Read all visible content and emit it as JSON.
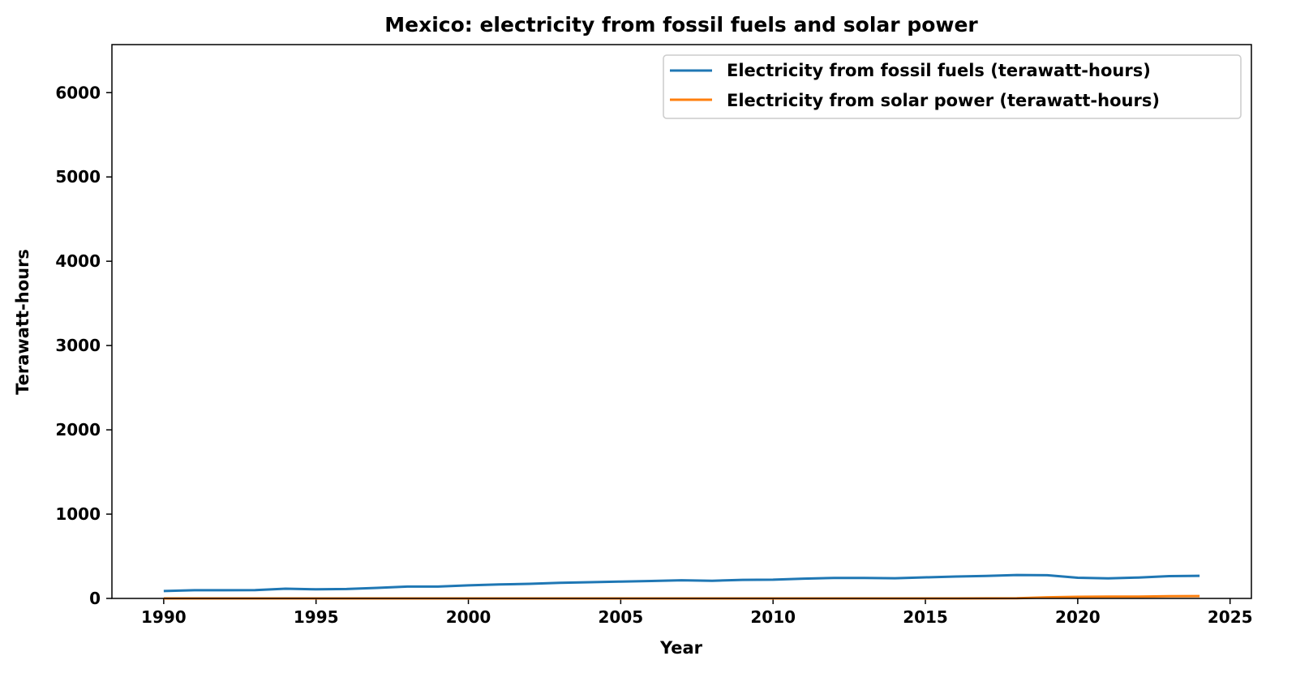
{
  "chart_data": {
    "type": "line",
    "title": "Mexico: electricity from fossil fuels and solar power",
    "xlabel": "Year",
    "ylabel": "Terawatt-hours",
    "xlim": [
      1988.3,
      2025.7
    ],
    "ylim": [
      0,
      6570
    ],
    "xticks": [
      1990,
      1995,
      2000,
      2005,
      2010,
      2015,
      2020,
      2025
    ],
    "yticks": [
      0,
      1000,
      2000,
      3000,
      4000,
      5000,
      6000
    ],
    "grid": false,
    "legend_position": "top-right",
    "x": [
      1990,
      1991,
      1992,
      1993,
      1994,
      1995,
      1996,
      1997,
      1998,
      1999,
      2000,
      2001,
      2002,
      2003,
      2004,
      2005,
      2006,
      2007,
      2008,
      2009,
      2010,
      2011,
      2012,
      2013,
      2014,
      2015,
      2016,
      2017,
      2018,
      2019,
      2020,
      2021,
      2022,
      2023,
      2024
    ],
    "series": [
      {
        "name": "Electricity from fossil fuels (terawatt-hours)",
        "color": "#1f77b4",
        "values": [
          88,
          97,
          97,
          98,
          115,
          108,
          112,
          125,
          140,
          140,
          155,
          165,
          173,
          185,
          192,
          200,
          207,
          215,
          210,
          220,
          222,
          235,
          243,
          243,
          240,
          250,
          260,
          267,
          278,
          275,
          245,
          238,
          248,
          265,
          268
        ]
      },
      {
        "name": "Electricity from solar power (terawatt-hours)",
        "color": "#ff7f0e",
        "values": [
          0,
          0,
          0,
          0,
          0,
          0,
          0,
          0,
          0,
          0,
          0,
          0,
          0,
          0,
          0,
          0,
          0,
          0,
          0,
          0,
          0,
          0.1,
          0.1,
          0.1,
          0.2,
          0.2,
          0.3,
          0.5,
          2.4,
          13,
          19,
          22,
          22,
          27,
          28
        ]
      }
    ]
  }
}
